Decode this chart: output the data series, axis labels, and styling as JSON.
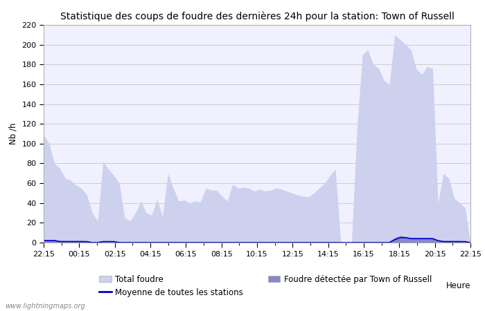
{
  "title": "Statistique des coups de foudre des dernières 24h pour la station: Town of Russell",
  "xlabel": "Heure",
  "ylabel": "Nb /h",
  "xlim_labels": [
    "22:15",
    "00:15",
    "02:15",
    "04:15",
    "06:15",
    "08:15",
    "10:15",
    "12:15",
    "14:15",
    "16:15",
    "18:15",
    "20:15",
    "22:15"
  ],
  "ylim": [
    0,
    220
  ],
  "yticks": [
    0,
    20,
    40,
    60,
    80,
    100,
    120,
    140,
    160,
    180,
    200,
    220
  ],
  "watermark": "www.lightningmaps.org",
  "legend_total": "Total foudre",
  "legend_moyenne": "Moyenne de toutes les stations",
  "legend_local": "Foudre détectée par Town of Russell",
  "total_foudre": [
    109,
    100,
    80,
    75,
    65,
    63,
    58,
    55,
    48,
    30,
    22,
    82,
    74,
    68,
    60,
    25,
    22,
    30,
    42,
    30,
    28,
    44,
    26,
    70,
    55,
    42,
    43,
    40,
    42,
    41,
    55,
    53,
    53,
    47,
    42,
    59,
    55,
    56,
    55,
    52,
    54,
    52,
    53,
    55,
    54,
    52,
    50,
    48,
    47,
    46,
    50,
    55,
    60,
    68,
    74,
    0,
    0,
    0,
    115,
    190,
    195,
    180,
    176,
    164,
    160,
    210,
    205,
    200,
    195,
    175,
    170,
    178,
    176,
    40,
    70,
    65,
    45,
    40,
    35,
    0
  ],
  "local_foudre": [
    3,
    3,
    3,
    2,
    2,
    2,
    2,
    2,
    1,
    1,
    1,
    1,
    1,
    1,
    1,
    1,
    1,
    1,
    1,
    1,
    1,
    1,
    1,
    1,
    1,
    1,
    1,
    1,
    1,
    1,
    1,
    1,
    1,
    1,
    1,
    1,
    1,
    1,
    1,
    1,
    1,
    1,
    1,
    1,
    1,
    1,
    1,
    1,
    1,
    1,
    1,
    1,
    1,
    1,
    1,
    0,
    0,
    0,
    1,
    1,
    1,
    1,
    1,
    1,
    1,
    5,
    7,
    6,
    5,
    5,
    5,
    5,
    5,
    2,
    2,
    2,
    2,
    2,
    1,
    0
  ],
  "moyenne": [
    2,
    2,
    2,
    1,
    1,
    1,
    1,
    1,
    1,
    0,
    0,
    1,
    1,
    1,
    0,
    0,
    0,
    0,
    0,
    0,
    0,
    0,
    0,
    0,
    0,
    0,
    0,
    0,
    0,
    0,
    0,
    0,
    0,
    0,
    0,
    0,
    0,
    0,
    0,
    0,
    0,
    0,
    0,
    0,
    0,
    0,
    0,
    0,
    0,
    0,
    0,
    0,
    0,
    0,
    0,
    0,
    0,
    0,
    0,
    0,
    0,
    0,
    0,
    0,
    0,
    3,
    5,
    5,
    4,
    4,
    4,
    4,
    4,
    2,
    1,
    1,
    1,
    1,
    1,
    0
  ],
  "color_total": "#cdd1ee",
  "color_local": "#8888cc",
  "color_moyenne": "#0000cc",
  "background_color": "#f0f0ff",
  "grid_color": "#cccccc",
  "title_fontsize": 10,
  "axis_fontsize": 8.5,
  "tick_fontsize": 8
}
